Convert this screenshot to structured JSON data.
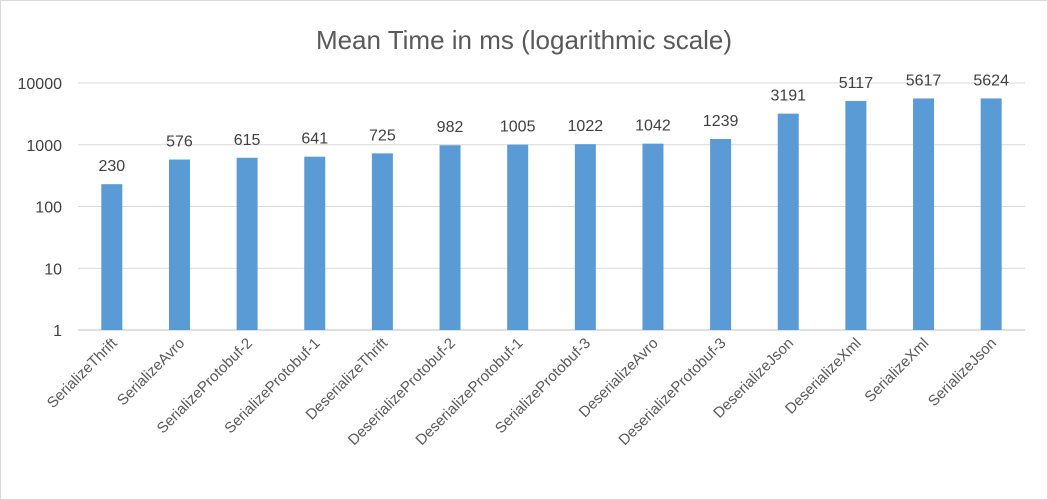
{
  "chart_data": {
    "type": "bar",
    "title": "Mean Time in ms (logarithmic scale)",
    "xlabel": "",
    "ylabel": "",
    "y_scale": "log10",
    "ylim": [
      1,
      10000
    ],
    "y_ticks": [
      "1",
      "10",
      "100",
      "1000",
      "10000"
    ],
    "grid": true,
    "legend": "none",
    "bar_color": "#5b9bd5",
    "categories": [
      "SerializeThrift",
      "SerializeAvro",
      "SerializeProtobuf-2",
      "SerializeProtobuf-1",
      "DeserializeThrift",
      "DeserializeProtobuf-2",
      "DeserializeProtobuf-1",
      "SerializeProtobuf-3",
      "DeserializeAvro",
      "DeserializeProtobuf-3",
      "DeserializeJson",
      "DeserializeXml",
      "SerializeXml",
      "SerializeJson"
    ],
    "values": [
      230,
      576,
      615,
      641,
      725,
      982,
      1005,
      1022,
      1042,
      1239,
      3191,
      5117,
      5617,
      5624
    ]
  }
}
